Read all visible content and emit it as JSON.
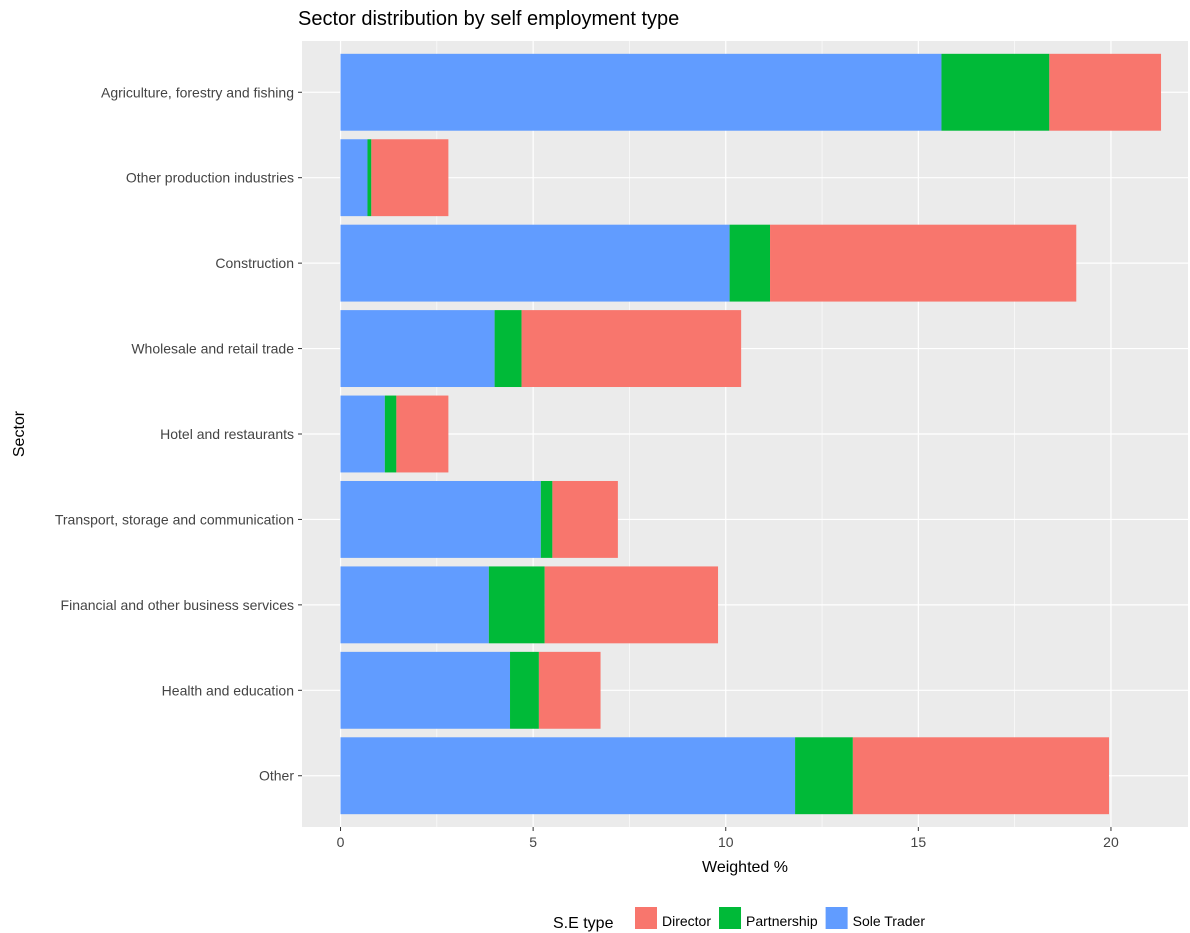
{
  "chart_data": {
    "type": "bar",
    "orientation": "horizontal",
    "stacked": true,
    "title": "Sector distribution by self employment type",
    "xlabel": "Weighted %",
    "ylabel": "Sector",
    "xlim": [
      -1.0,
      22.0
    ],
    "x_ticks": [
      "0",
      "5",
      "10",
      "15",
      "20"
    ],
    "grid": true,
    "legend_position": "bottom",
    "categories": [
      "Agriculture, forestry and fishing",
      "Other production industries",
      "Construction",
      "Wholesale and retail trade",
      "Hotel and restaurants",
      "Transport, storage and communication",
      "Financial and other business services",
      "Health and education",
      "Other"
    ],
    "series": [
      {
        "name": "Sole Trader",
        "color": "#619CFF",
        "values": [
          15.6,
          0.7,
          10.1,
          4.0,
          1.15,
          5.2,
          3.85,
          4.4,
          11.8
        ]
      },
      {
        "name": "Partnership",
        "color": "#00BA38",
        "values": [
          2.8,
          0.1,
          1.05,
          0.7,
          0.3,
          0.3,
          1.45,
          0.75,
          1.5
        ]
      },
      {
        "name": "Director",
        "color": "#F8766D",
        "values": [
          2.9,
          2.0,
          7.95,
          5.7,
          1.35,
          1.7,
          4.5,
          1.6,
          6.65
        ]
      }
    ],
    "legend": {
      "title": "S.E type",
      "items": [
        "Director",
        "Partnership",
        "Sole Trader"
      ]
    }
  }
}
